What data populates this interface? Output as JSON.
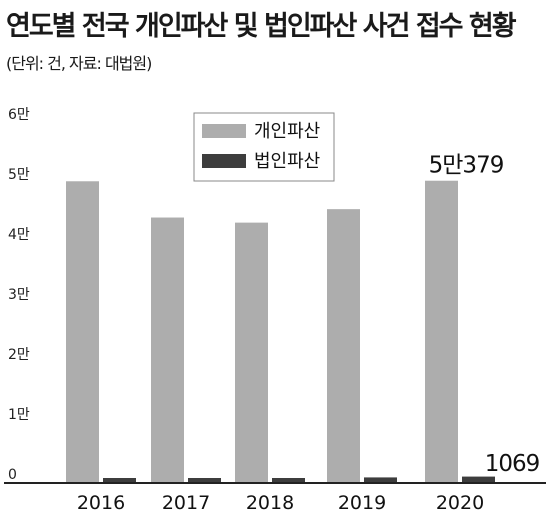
{
  "title": "연도별 전국 개인파산 및 법인파산 사건 접수 현황",
  "subtitle": "(단위: 건, 자료: 대법원)",
  "colors": {
    "individual": "#adadad",
    "corporate": "#3d3d3d",
    "axis": "#222222"
  },
  "chart_data": {
    "type": "bar",
    "title": "연도별 전국 개인파산 및 법인파산 사건 접수 현황",
    "subtitle": "(단위: 건, 자료: 대법원)",
    "categories": [
      "2016",
      "2017",
      "2018",
      "2019",
      "2020"
    ],
    "series": [
      {
        "name": "개인파산",
        "values": [
          50288,
          44246,
          43397,
          45642,
          50379
        ]
      },
      {
        "name": "법인파산",
        "values": [
          740,
          699,
          807,
          931,
          1069
        ]
      }
    ],
    "ylim": [
      0,
      60000
    ],
    "yticks": [
      {
        "value": 0,
        "label": "0"
      },
      {
        "value": 10000,
        "label": "1만"
      },
      {
        "value": 20000,
        "label": "2만"
      },
      {
        "value": 30000,
        "label": "3만"
      },
      {
        "value": 40000,
        "label": "4만"
      },
      {
        "value": 50000,
        "label": "5만"
      },
      {
        "value": 60000,
        "label": "6만"
      }
    ],
    "annotations": [
      {
        "series": 0,
        "index": 4,
        "text": "5만379"
      },
      {
        "series": 1,
        "index": 4,
        "text": "1069"
      }
    ],
    "legend": "top-center",
    "grid": false
  }
}
